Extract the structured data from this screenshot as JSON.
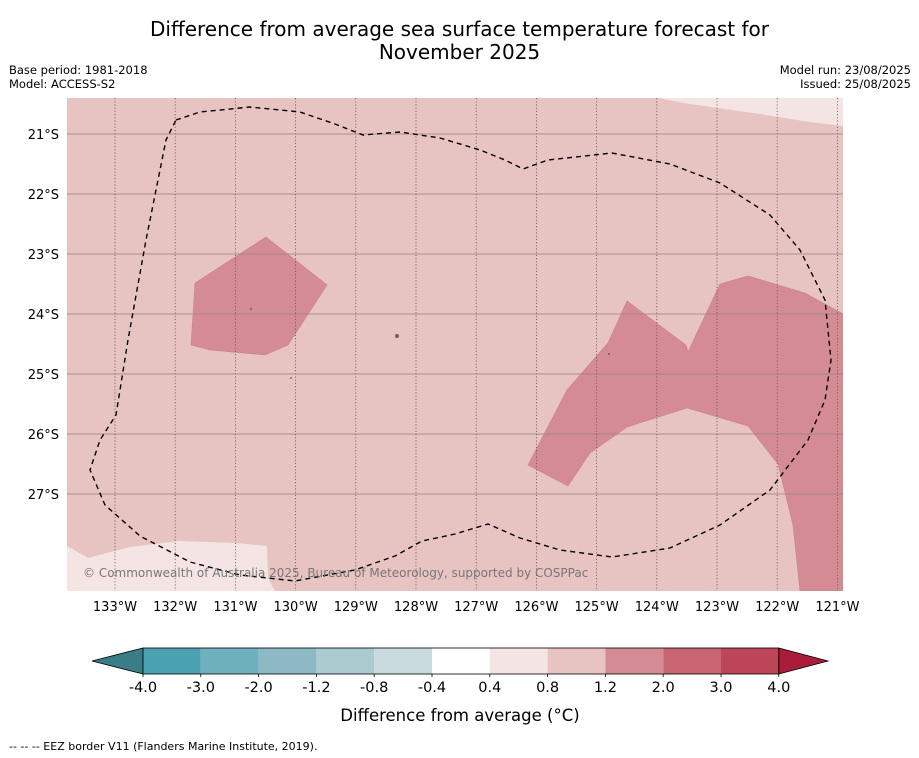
{
  "header": {
    "title_line1": "Difference from average sea surface temperature forecast for",
    "title_line2": "November 2025",
    "base_period": "Base period: 1981-2018",
    "model": "Model: ACCESS-S2",
    "model_run": "Model run: 23/08/2025",
    "issued": "Issued: 25/08/2025"
  },
  "map": {
    "lat_labels": [
      "21°S",
      "22°S",
      "23°S",
      "24°S",
      "25°S",
      "26°S",
      "27°S"
    ],
    "lon_labels": [
      "133°W",
      "132°W",
      "131°W",
      "130°W",
      "129°W",
      "128°W",
      "127°W",
      "126°W",
      "125°W",
      "124°W",
      "123°W",
      "122°W",
      "121°W"
    ],
    "copyright": "© Commonwealth of Australia 2025, Bureau of Meteorology, supported by COSPPac",
    "background_anomaly_range": "0.8 to 1.2",
    "fill_colors": {
      "0.4_to_0.8": "#f4e5e4",
      "0.8_to_1.2": "#e7c4c1",
      "1.2_to_2.0": "#d48b94"
    }
  },
  "colorbar": {
    "label": "Difference from average (°C)",
    "ticks": [
      "-4.0",
      "-3.0",
      "-2.0",
      "-1.2",
      "-0.8",
      "-0.4",
      "0.4",
      "0.8",
      "1.2",
      "2.0",
      "3.0",
      "4.0"
    ],
    "colors": [
      "#3a7d87",
      "#49a1b1",
      "#6fb0bd",
      "#8db9c4",
      "#aacbd0",
      "#c9dade",
      "#ffffff",
      "#f4e5e4",
      "#e7c4c1",
      "#d48b94",
      "#c96572",
      "#bd4558",
      "#a91d3a"
    ]
  },
  "footnote": "-- -- -- EEZ border V11 (Flanders Marine Institute, 2019)."
}
